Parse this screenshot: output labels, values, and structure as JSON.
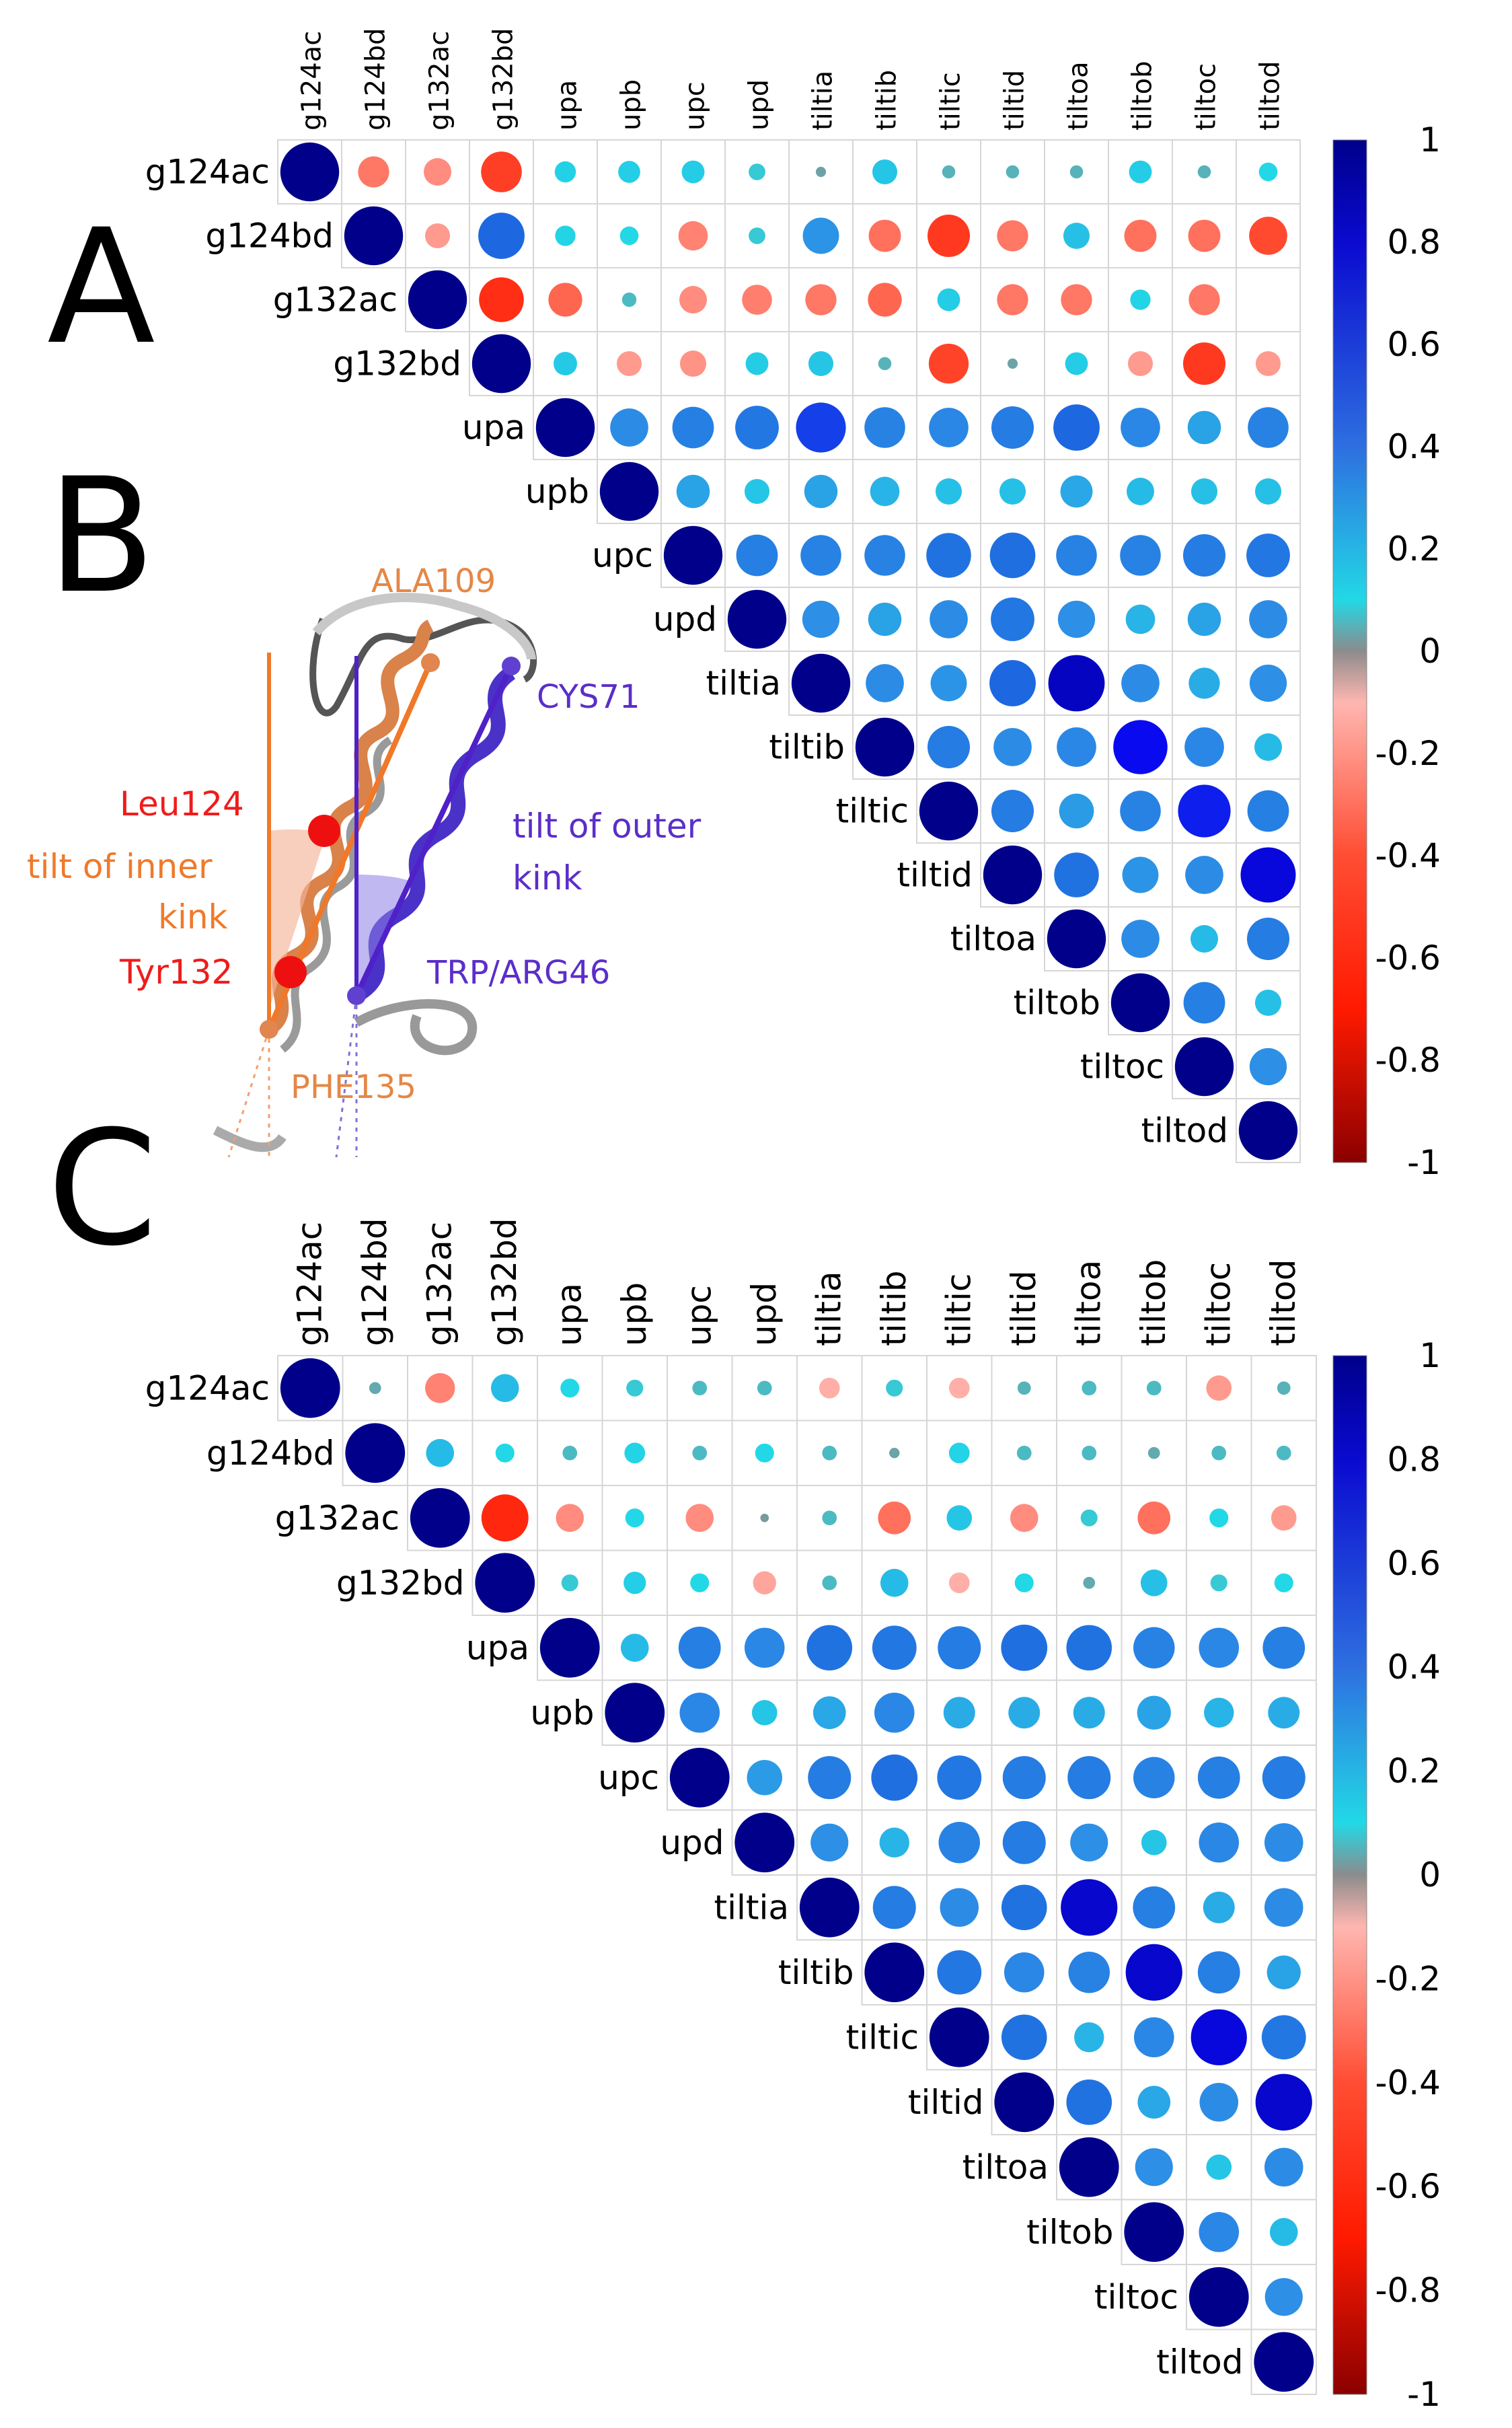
{
  "panel_labels": {
    "a": "A",
    "b": "B",
    "c": "C"
  },
  "colors": {
    "neg1": "#8b0000",
    "negmid": "#ff2a00",
    "neg0": "#ffb6b0",
    "zero": "#8c8c8c",
    "pos0": "#22d8e6",
    "pos04": "#1f7fe0",
    "pos08": "#1010f0",
    "pos1": "#00008b"
  },
  "chart_data": [
    {
      "type": "heatmap",
      "panel": "A",
      "title": "",
      "variables": [
        "g124ac",
        "g124bd",
        "g132ac",
        "g132bd",
        "upa",
        "upb",
        "upc",
        "upd",
        "tiltia",
        "tiltib",
        "tiltic",
        "tiltid",
        "tiltoa",
        "tiltob",
        "tiltoc",
        "tiltod"
      ],
      "matrix_upper": [
        [
          1,
          -0.28,
          -0.22,
          -0.48,
          0.13,
          0.14,
          0.15,
          0.08,
          0.03,
          0.18,
          0.05,
          0.05,
          0.05,
          0.15,
          0.05,
          0.1
        ],
        [
          1,
          -0.18,
          0.62,
          0.12,
          0.1,
          -0.25,
          0.08,
          0.38,
          -0.3,
          -0.52,
          -0.28,
          0.2,
          -0.3,
          -0.3,
          -0.42
        ],
        [
          1,
          -0.58,
          -0.33,
          0.06,
          -0.22,
          -0.26,
          -0.28,
          -0.33,
          0.15,
          -0.28,
          -0.28,
          0.12,
          -0.28
        ],
        [
          1,
          0.16,
          -0.18,
          -0.2,
          0.15,
          0.18,
          0.05,
          -0.46,
          0.03,
          0.15,
          -0.18,
          -0.52,
          -0.18
        ],
        [
          1,
          0.42,
          0.5,
          0.55,
          0.72,
          0.48,
          0.45,
          0.52,
          0.62,
          0.45,
          0.32,
          0.48
        ],
        [
          1,
          0.32,
          0.18,
          0.32,
          0.25,
          0.2,
          0.2,
          0.3,
          0.22,
          0.2,
          0.2
        ],
        [
          1,
          0.5,
          0.48,
          0.48,
          0.58,
          0.6,
          0.48,
          0.48,
          0.52,
          0.55
        ],
        [
          1,
          0.4,
          0.32,
          0.42,
          0.55,
          0.4,
          0.25,
          0.32,
          0.42
        ],
        [
          1,
          0.42,
          0.38,
          0.62,
          0.92,
          0.42,
          0.28,
          0.4
        ],
        [
          1,
          0.52,
          0.42,
          0.45,
          0.85,
          0.45,
          0.22
        ],
        [
          1,
          0.52,
          0.35,
          0.48,
          0.8,
          0.5
        ],
        [
          1,
          0.58,
          0.38,
          0.42,
          0.88
        ],
        [
          1,
          0.42,
          0.22,
          0.52
        ],
        [
          1,
          0.5,
          0.2
        ],
        [
          1,
          0.4
        ],
        [
          1
        ]
      ],
      "colorbar": {
        "ticks": [
          "1",
          "0.8",
          "0.6",
          "0.4",
          "0.2",
          "0",
          "-0.2",
          "-0.4",
          "-0.6",
          "-0.8",
          "-1"
        ],
        "range": [
          -1,
          1
        ]
      }
    },
    {
      "type": "heatmap",
      "panel": "C",
      "title": "",
      "variables": [
        "g124ac",
        "g124bd",
        "g132ac",
        "g132bd",
        "upa",
        "upb",
        "upc",
        "upd",
        "tiltia",
        "tiltib",
        "tiltic",
        "tiltid",
        "tiltoa",
        "tiltob",
        "tiltoc",
        "tiltod"
      ],
      "matrix_upper": [
        [
          1,
          0.04,
          -0.25,
          0.22,
          0.1,
          0.08,
          0.06,
          0.06,
          -0.12,
          0.08,
          -0.12,
          0.05,
          0.06,
          0.06,
          -0.18,
          0.05
        ],
        [
          1,
          0.22,
          0.1,
          0.06,
          0.12,
          0.06,
          0.1,
          0.06,
          0.03,
          0.12,
          0.06,
          0.06,
          0.04,
          0.06,
          0.06
        ],
        [
          1,
          -0.62,
          -0.22,
          0.1,
          -0.22,
          0.02,
          0.06,
          -0.3,
          0.18,
          -0.22,
          0.08,
          -0.3,
          0.1,
          -0.18
        ],
        [
          1,
          0.08,
          0.14,
          0.1,
          -0.15,
          0.06,
          0.22,
          -0.12,
          0.1,
          0.04,
          0.2,
          0.08,
          0.1
        ],
        [
          1,
          0.22,
          0.5,
          0.45,
          0.58,
          0.55,
          0.52,
          0.6,
          0.58,
          0.48,
          0.45,
          0.5
        ],
        [
          1,
          0.45,
          0.18,
          0.3,
          0.45,
          0.28,
          0.28,
          0.28,
          0.32,
          0.25,
          0.28
        ],
        [
          1,
          0.35,
          0.52,
          0.6,
          0.55,
          0.52,
          0.52,
          0.48,
          0.5,
          0.52
        ],
        [
          1,
          0.4,
          0.25,
          0.48,
          0.52,
          0.4,
          0.18,
          0.45,
          0.42
        ],
        [
          1,
          0.52,
          0.42,
          0.58,
          0.9,
          0.5,
          0.28,
          0.42
        ],
        [
          1,
          0.55,
          0.45,
          0.48,
          0.9,
          0.5,
          0.32
        ],
        [
          1,
          0.58,
          0.25,
          0.45,
          0.88,
          0.55
        ],
        [
          1,
          0.58,
          0.3,
          0.42,
          0.9
        ],
        [
          1,
          0.4,
          0.18,
          0.42
        ],
        [
          1,
          0.45,
          0.22
        ],
        [
          1,
          0.4
        ],
        [
          1
        ]
      ],
      "colorbar": {
        "ticks": [
          "1",
          "0.8",
          "0.6",
          "0.4",
          "0.2",
          "0",
          "-0.2",
          "-0.4",
          "-0.6",
          "-0.8",
          "-1"
        ],
        "range": [
          -1,
          1
        ]
      }
    }
  ],
  "panel_b": {
    "labels": {
      "ala109": "ALA109",
      "cys71": "CYS71",
      "leu124": "Leu124",
      "tilt_inner_1": "tilt of inner",
      "tilt_inner_2": "kink",
      "tyr132": "Tyr132",
      "tilt_outer_1": "tilt of outer",
      "tilt_outer_2": "kink",
      "trp_arg46": "TRP/ARG46",
      "phe135": "PHE135"
    }
  }
}
